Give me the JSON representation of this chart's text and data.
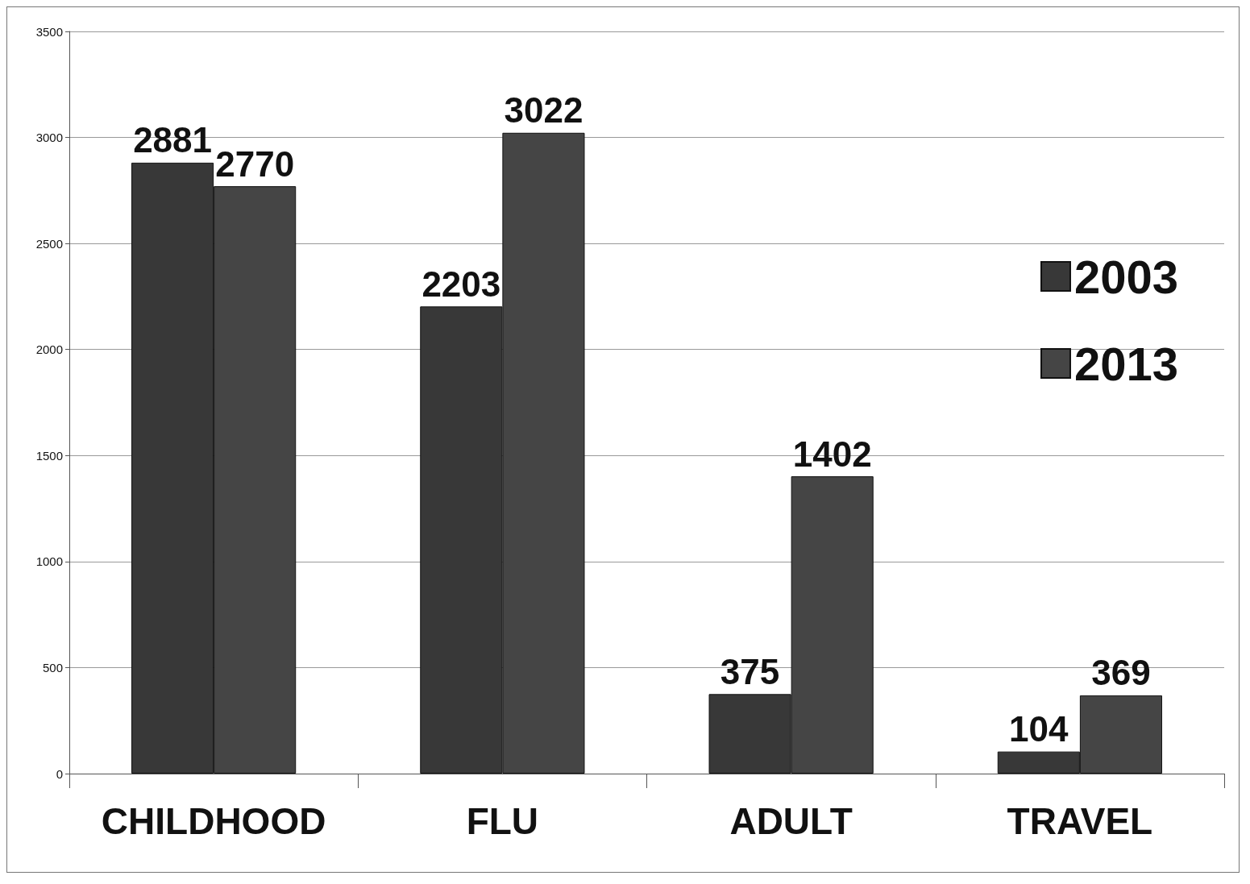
{
  "chart_data": {
    "type": "bar",
    "categories": [
      "CHILDHOOD",
      "FLU",
      "ADULT",
      "TRAVEL"
    ],
    "series": [
      {
        "name": "2003",
        "color": "#383838",
        "values": [
          2881,
          2203,
          375,
          104
        ]
      },
      {
        "name": "2013",
        "color": "#454545",
        "values": [
          2770,
          3022,
          1402,
          369
        ]
      }
    ],
    "ylim": [
      0,
      3500
    ],
    "yticks": [
      0,
      500,
      1000,
      1500,
      2000,
      2500,
      3000,
      3500
    ],
    "grid": "y",
    "legend": "right",
    "data_labels": true
  }
}
